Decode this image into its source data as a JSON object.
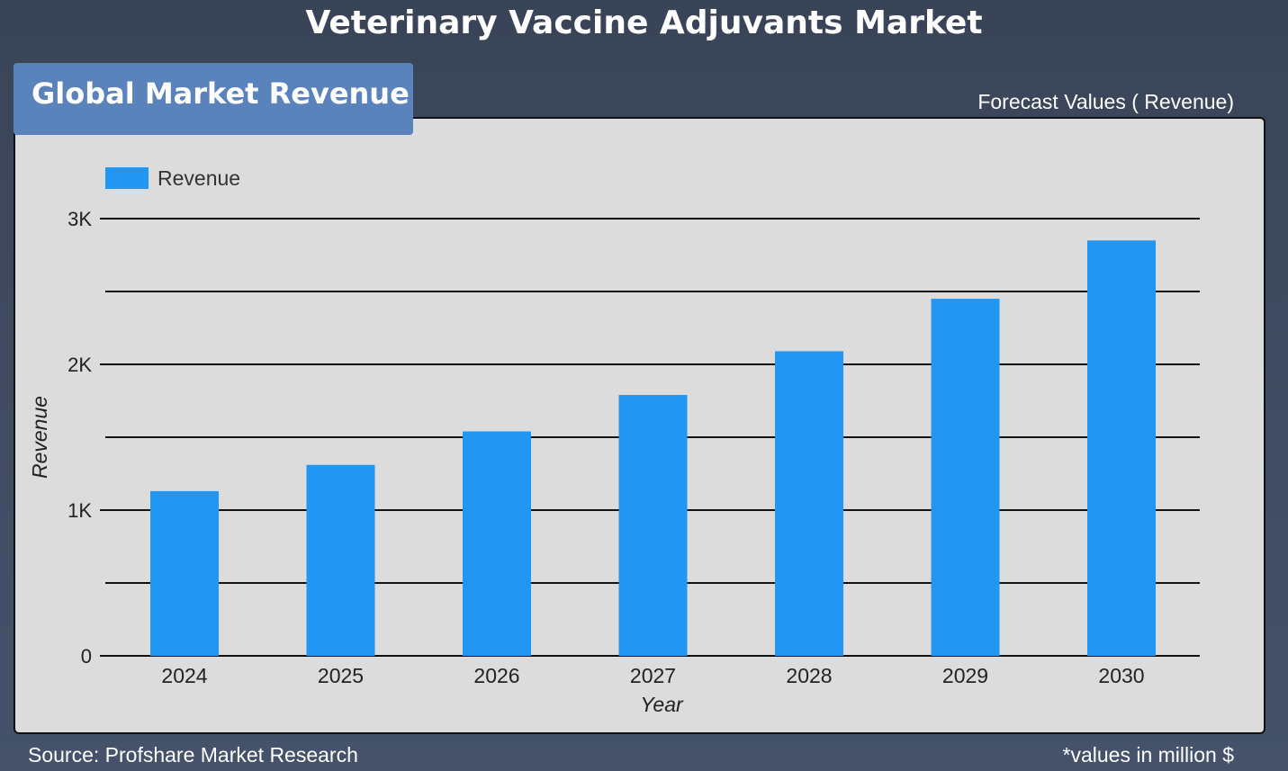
{
  "header": {
    "title": "Veterinary Vaccine Adjuvants Market",
    "badge": "Global Market Revenue",
    "forecast_label": "Forecast Values ( Revenue)"
  },
  "footer": {
    "source": "Source: Profshare Market Research",
    "unit_note": "*values in million $"
  },
  "colors": {
    "bar": "#2196f3",
    "panel": "#dcdcdc",
    "badge": "#5a82bb"
  },
  "chart_data": {
    "type": "bar",
    "categories": [
      "2024",
      "2025",
      "2026",
      "2027",
      "2028",
      "2029",
      "2030"
    ],
    "series": [
      {
        "name": "Revenue",
        "values": [
          1130,
          1310,
          1540,
          1790,
          2090,
          2450,
          2850
        ]
      }
    ],
    "xlabel": "Year",
    "ylabel": "Revenue",
    "ylim": [
      0,
      3000
    ],
    "yticks": [
      0,
      1000,
      2000,
      3000
    ],
    "ytick_labels": [
      "0",
      "1K",
      "2K",
      "3K"
    ],
    "grid": true,
    "legend": "top-left"
  }
}
